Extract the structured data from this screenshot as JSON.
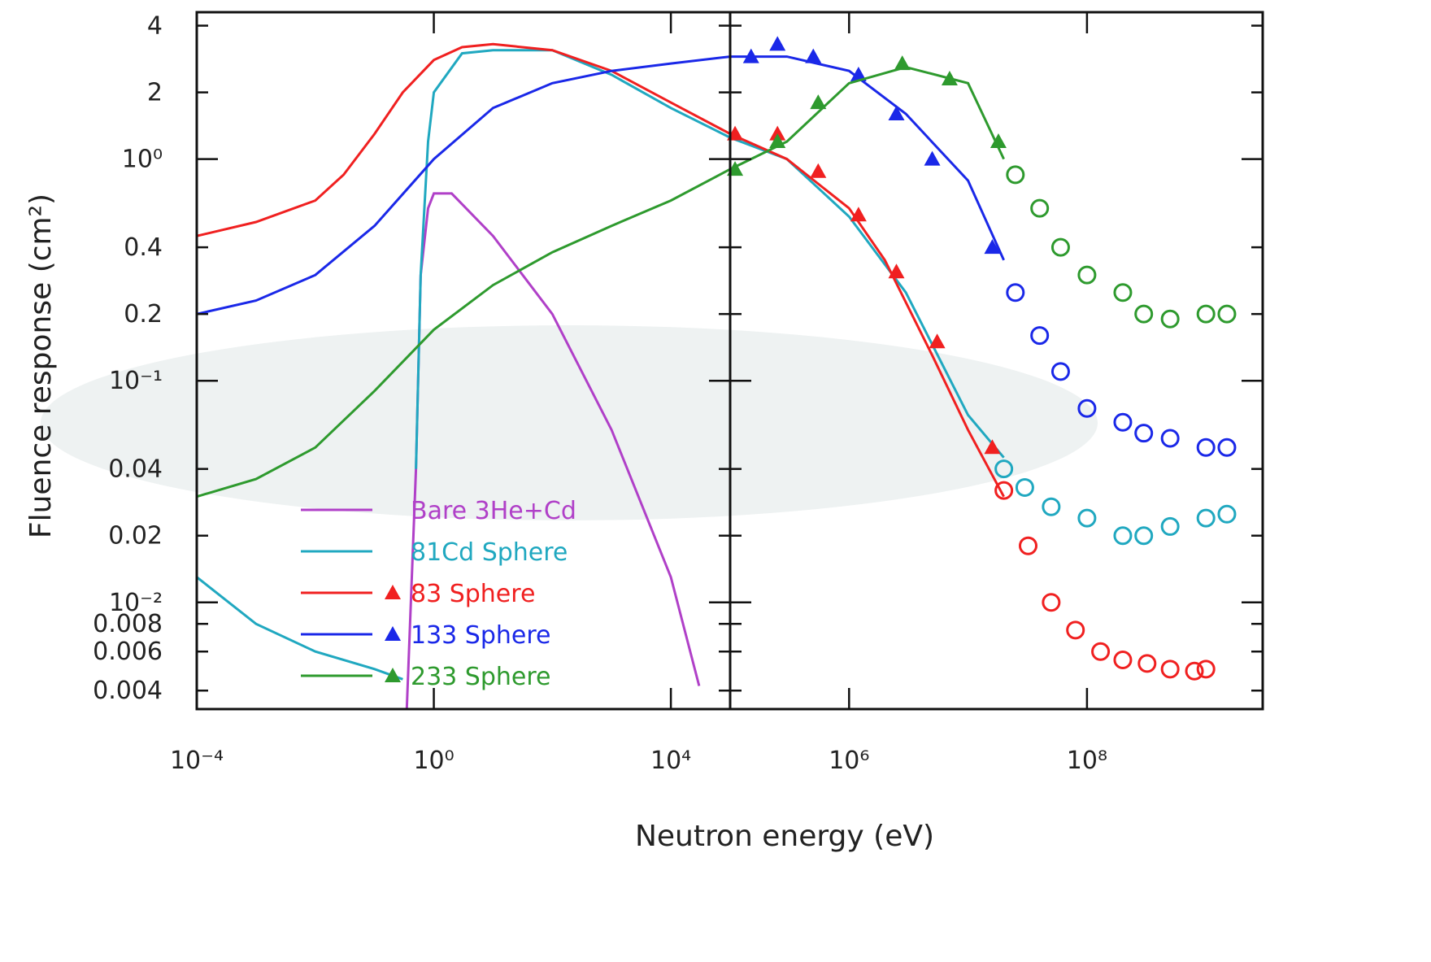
{
  "chart_data": {
    "type": "line",
    "x_label": "Neutron energy (eV)",
    "y_label": "Fluence response (cm²)",
    "log_x": true,
    "log_y": true,
    "ylim": [
      0.0033,
      4.6
    ],
    "yticks": [
      0.004,
      0.006,
      0.008,
      {
        "value": 0.01,
        "label": "10⁻²"
      },
      0.02,
      0.04,
      {
        "value": 0.1,
        "label": "10⁻¹"
      },
      0.2,
      0.4,
      {
        "value": 1,
        "label": "10⁰"
      },
      2,
      4
    ],
    "panels": [
      {
        "xlim": [
          0.0001,
          100000
        ],
        "xticks": [
          {
            "value": 0.0001,
            "label": "10⁻⁴"
          },
          {
            "value": 1,
            "label": "10⁰"
          },
          {
            "value": 10000,
            "label": "10⁴"
          }
        ]
      },
      {
        "xlim": [
          100000,
          3000000000
        ],
        "xticks": [
          {
            "value": 1000000,
            "label": "10⁶"
          },
          {
            "value": 100000000,
            "label": "10⁸"
          }
        ]
      }
    ],
    "series": [
      {
        "name": "Bare 3He+Cd",
        "color": "#b040c8",
        "curve": {
          "x": [
            0.35,
            0.5,
            0.6,
            0.8,
            1,
            2,
            10,
            100,
            1000,
            10000,
            30000
          ],
          "values": [
            0.0033,
            0.04,
            0.3,
            0.6,
            0.7,
            0.7,
            0.45,
            0.2,
            0.06,
            0.013,
            0.0042
          ]
        }
      },
      {
        "name": "81Cd Sphere",
        "color": "#20a8c0",
        "curve": {
          "x": [
            0.0001,
            0.001,
            0.01,
            0.1,
            0.3,
            0.4,
            0.5,
            0.6,
            0.8,
            1,
            3,
            10,
            100,
            1000,
            10000,
            100000,
            300000,
            1000000,
            3000000,
            10000000,
            20000000
          ],
          "values": [
            0.013,
            0.008,
            0.006,
            0.005,
            0.0045,
            null,
            0.04,
            0.3,
            1.2,
            2.0,
            3.0,
            3.1,
            3.1,
            2.4,
            1.7,
            1.25,
            1.0,
            0.55,
            0.25,
            0.07,
            0.045
          ]
        },
        "circles": {
          "x": [
            20000000,
            30000000,
            50000000,
            100000000,
            200000000,
            300000000,
            500000000,
            1000000000,
            1500000000
          ],
          "values": [
            0.04,
            0.033,
            0.027,
            0.024,
            0.02,
            0.02,
            0.022,
            0.024,
            0.025
          ]
        }
      },
      {
        "name": "83 Sphere",
        "color": "#f02020",
        "curve": {
          "x": [
            0.0001,
            0.001,
            0.01,
            0.03,
            0.1,
            0.3,
            1,
            3,
            10,
            100,
            1000,
            10000,
            100000,
            300000,
            1000000,
            2000000,
            5000000,
            10000000,
            20000000
          ],
          "values": [
            0.45,
            0.52,
            0.65,
            0.85,
            1.3,
            2.0,
            2.8,
            3.2,
            3.3,
            3.1,
            2.5,
            1.8,
            1.3,
            1.0,
            0.6,
            0.35,
            0.13,
            0.06,
            0.03
          ]
        },
        "triangles": {
          "x": [
            110000,
            250000,
            550000,
            1200000,
            2500000,
            5500000,
            16000000
          ],
          "values": [
            1.3,
            1.3,
            0.88,
            0.56,
            0.31,
            0.15,
            0.05
          ]
        },
        "circles": {
          "x": [
            20000000,
            32000000,
            50000000,
            80000000,
            130000000,
            200000000,
            320000000,
            500000000,
            800000000,
            1000000000
          ],
          "values": [
            0.032,
            0.018,
            0.01,
            0.0075,
            0.006,
            0.0055,
            0.0053,
            0.005,
            0.0049,
            0.005
          ]
        }
      },
      {
        "name": "133 Sphere",
        "color": "#1a28e8",
        "curve": {
          "x": [
            0.0001,
            0.001,
            0.01,
            0.1,
            1,
            10,
            100,
            1000,
            10000,
            100000,
            300000,
            1000000,
            3000000,
            10000000,
            20000000
          ],
          "values": [
            0.2,
            0.23,
            0.3,
            0.5,
            1.0,
            1.7,
            2.2,
            2.5,
            2.7,
            2.9,
            2.9,
            2.5,
            1.6,
            0.8,
            0.35
          ]
        },
        "triangles": {
          "x": [
            150000,
            250000,
            500000,
            1200000,
            2500000,
            5000000,
            16000000
          ],
          "values": [
            2.9,
            3.3,
            2.9,
            2.4,
            1.6,
            1.0,
            0.4
          ]
        },
        "circles": {
          "x": [
            25000000,
            40000000,
            60000000,
            100000000,
            200000000,
            300000000,
            500000000,
            1000000000,
            1500000000
          ],
          "values": [
            0.25,
            0.16,
            0.11,
            0.075,
            0.065,
            0.058,
            0.055,
            0.05,
            0.05
          ]
        }
      },
      {
        "name": "233 Sphere",
        "color": "#2e9a2e",
        "curve": {
          "x": [
            0.0001,
            0.001,
            0.01,
            0.1,
            1,
            10,
            100,
            1000,
            10000,
            100000,
            300000,
            1000000,
            3000000,
            10000000,
            20000000
          ],
          "values": [
            0.03,
            0.036,
            0.05,
            0.09,
            0.17,
            0.27,
            0.38,
            0.5,
            0.65,
            0.9,
            1.2,
            2.2,
            2.6,
            2.2,
            1.0
          ]
        },
        "triangles": {
          "x": [
            110000,
            250000,
            550000,
            2800000,
            7000000,
            18000000
          ],
          "values": [
            0.9,
            1.2,
            1.8,
            2.7,
            2.3,
            1.2
          ]
        },
        "circles": {
          "x": [
            25000000,
            40000000,
            60000000,
            100000000,
            200000000,
            300000000,
            500000000,
            1000000000,
            1500000000
          ],
          "values": [
            0.85,
            0.6,
            0.4,
            0.3,
            0.25,
            0.2,
            0.19,
            0.2,
            0.2
          ]
        }
      }
    ]
  }
}
